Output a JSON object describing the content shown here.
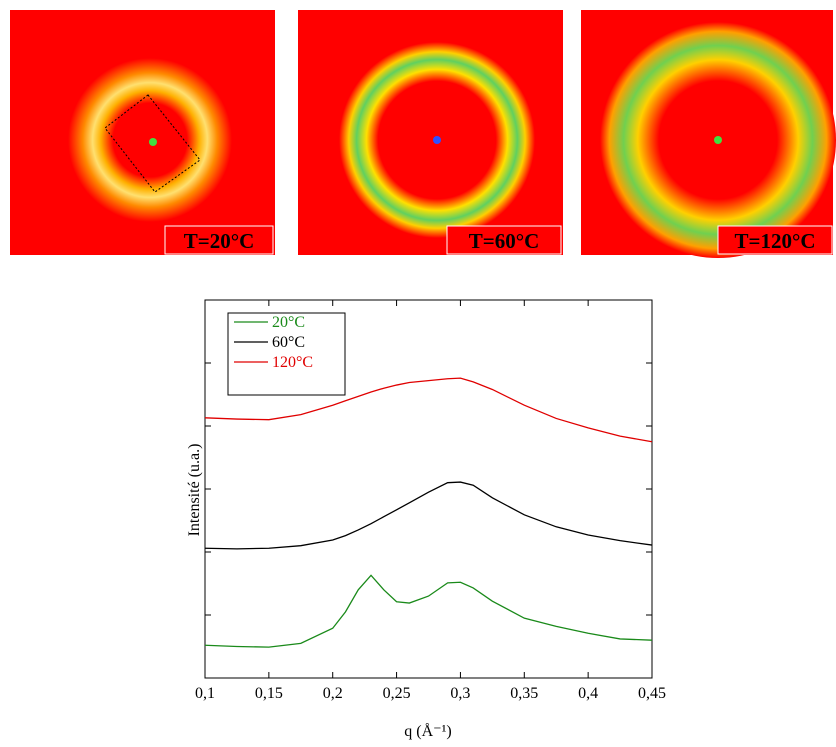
{
  "panels": [
    {
      "label": "T=20°C"
    },
    {
      "label": "T=60°C"
    },
    {
      "label": "T=120°C"
    }
  ],
  "chart_data": {
    "type": "line",
    "xlabel": "q (Å⁻¹)",
    "ylabel": "Intensité (u.a.)",
    "x": [
      0.1,
      0.125,
      0.15,
      0.175,
      0.2,
      0.21,
      0.22,
      0.23,
      0.24,
      0.25,
      0.26,
      0.275,
      0.29,
      0.3,
      0.31,
      0.325,
      0.35,
      0.375,
      0.4,
      0.425,
      0.45
    ],
    "series": [
      {
        "name": "20°C",
        "color": "#1a8a1a",
        "values": [
          0.52,
          0.5,
          0.49,
          0.55,
          0.79,
          1.05,
          1.4,
          1.63,
          1.4,
          1.21,
          1.19,
          1.3,
          1.51,
          1.52,
          1.43,
          1.22,
          0.95,
          0.82,
          0.71,
          0.62,
          0.6
        ]
      },
      {
        "name": "60°C",
        "color": "#000000",
        "values": [
          2.06,
          2.05,
          2.06,
          2.1,
          2.19,
          2.26,
          2.35,
          2.45,
          2.56,
          2.67,
          2.78,
          2.95,
          3.1,
          3.11,
          3.06,
          2.86,
          2.59,
          2.4,
          2.27,
          2.18,
          2.11
        ]
      },
      {
        "name": "120°C",
        "color": "#e00000",
        "values": [
          4.13,
          4.11,
          4.1,
          4.18,
          4.33,
          4.4,
          4.47,
          4.54,
          4.6,
          4.65,
          4.69,
          4.72,
          4.75,
          4.76,
          4.7,
          4.58,
          4.33,
          4.12,
          3.97,
          3.84,
          3.75
        ]
      }
    ],
    "xlim": [
      0.1,
      0.45
    ],
    "xticks": [
      {
        "value": 0.1,
        "label": "0,1"
      },
      {
        "value": 0.15,
        "label": "0,15"
      },
      {
        "value": 0.2,
        "label": "0,2"
      },
      {
        "value": 0.25,
        "label": "0,25"
      },
      {
        "value": 0.3,
        "label": "0,3"
      },
      {
        "value": 0.35,
        "label": "0,35"
      },
      {
        "value": 0.4,
        "label": "0,4"
      },
      {
        "value": 0.45,
        "label": "0,45"
      }
    ],
    "ylim": [
      0,
      6
    ],
    "yticks": [
      1,
      2,
      3,
      4,
      5
    ],
    "legend": "upper-left"
  }
}
